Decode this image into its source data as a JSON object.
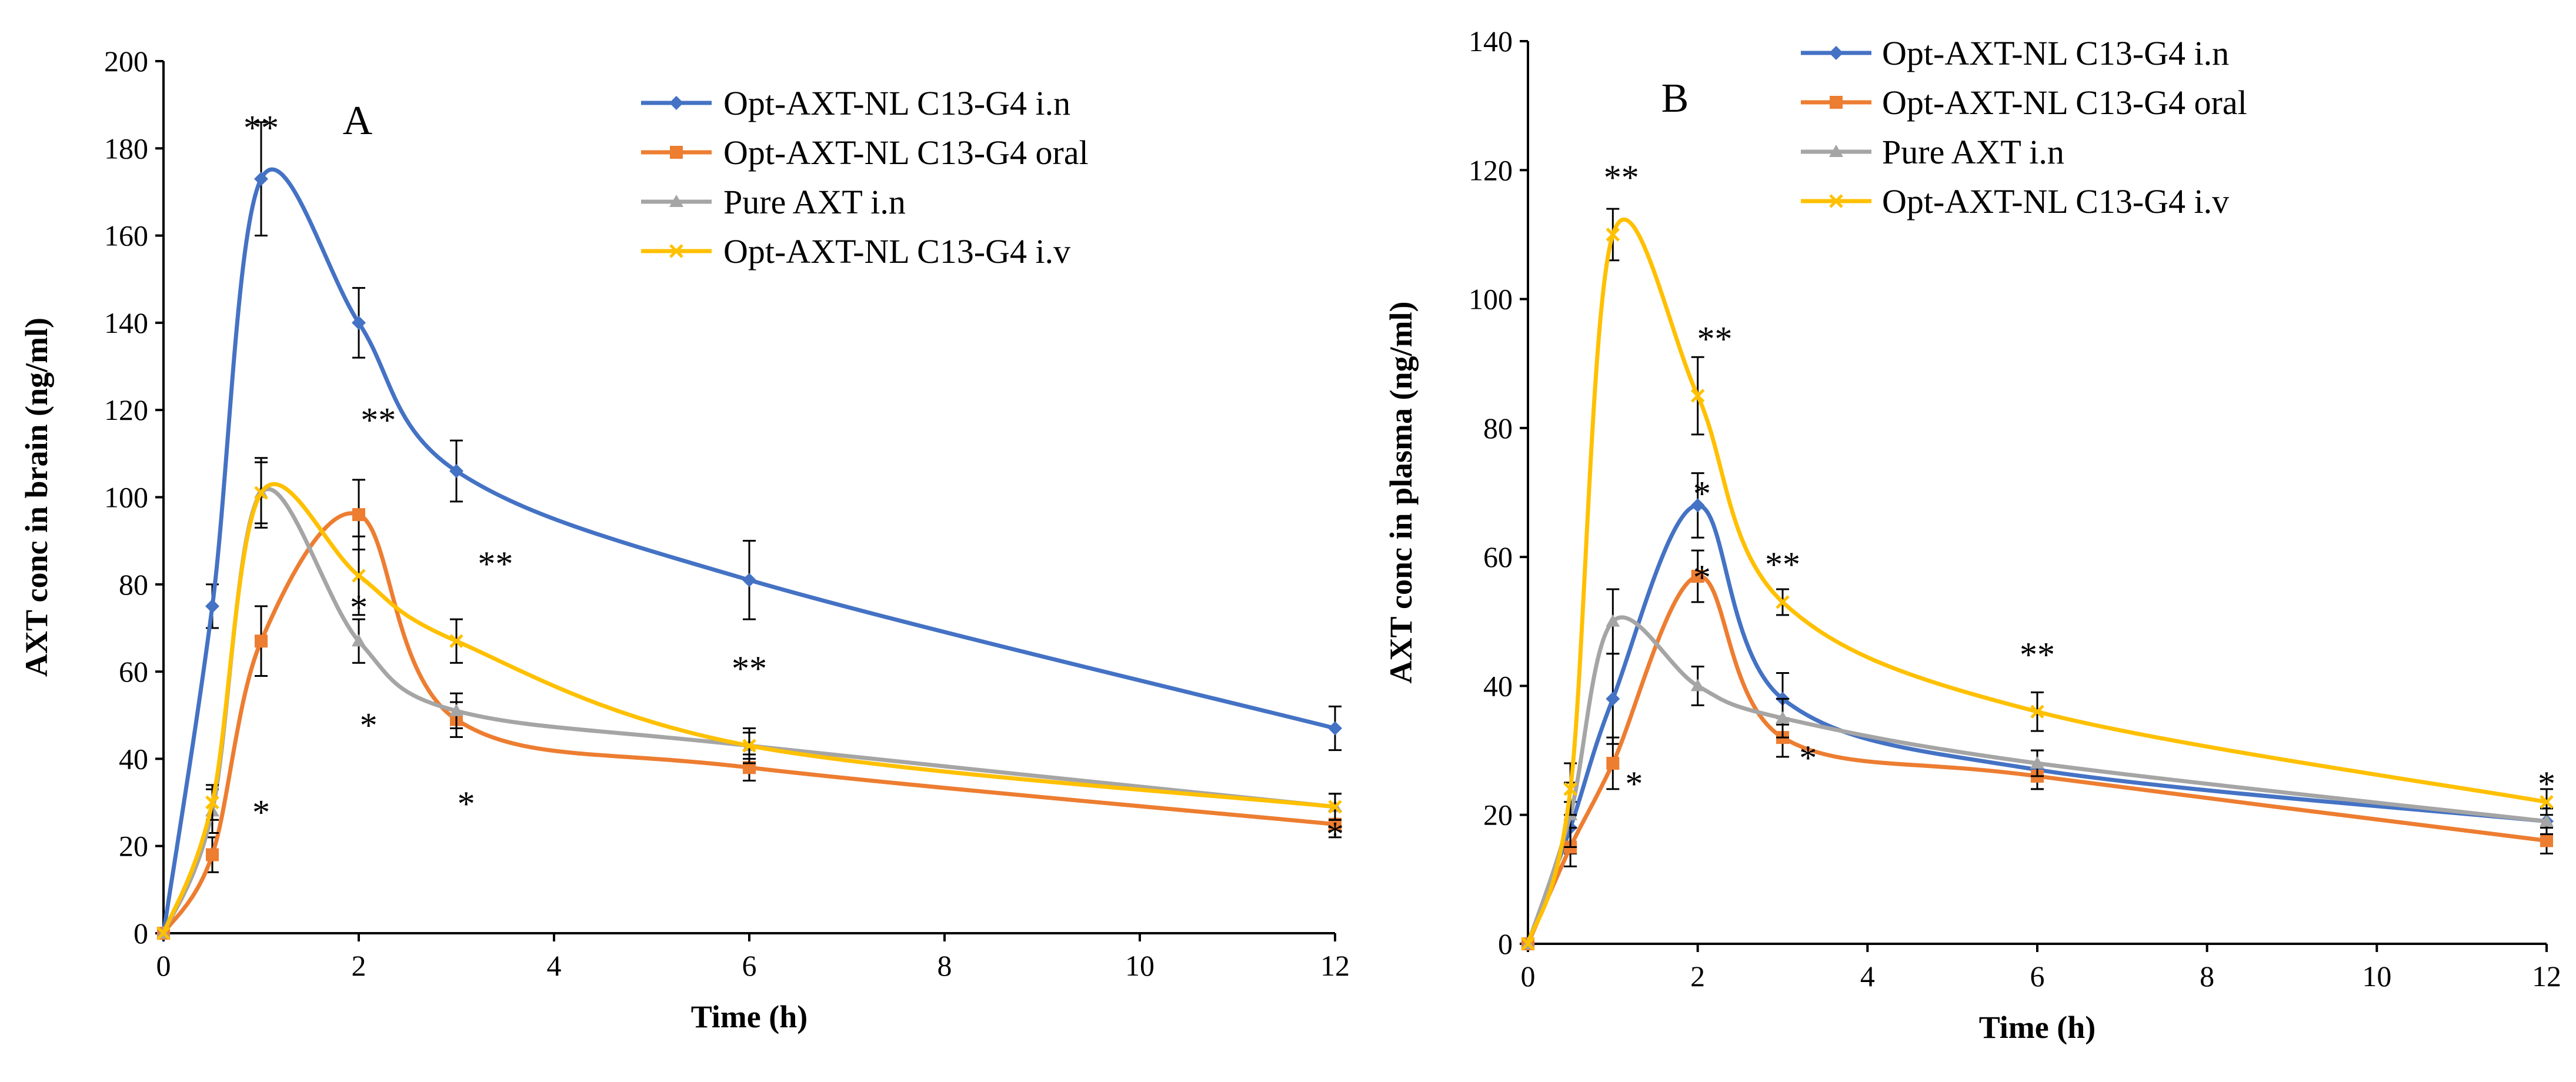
{
  "chart_data": [
    {
      "type": "line",
      "panel": "A",
      "xlabel": "Time  (h)",
      "ylabel": "AXT conc in brain  (ng/ml)",
      "xlim": [
        0,
        12
      ],
      "ylim": [
        0,
        200
      ],
      "xticks": [
        0,
        2,
        4,
        6,
        8,
        10,
        12
      ],
      "yticks": [
        0,
        20,
        40,
        60,
        80,
        100,
        120,
        140,
        160,
        180,
        200
      ],
      "legend_position": "top-right",
      "x": [
        0,
        0.5,
        1,
        2,
        3,
        6,
        12
      ],
      "series": [
        {
          "name": "Opt-AXT-NL C13-G4 i.n",
          "color": "#4472C4",
          "marker": "diamond",
          "values": [
            0,
            75,
            173,
            140,
            106,
            81,
            47
          ],
          "errors": [
            0,
            5,
            13,
            8,
            7,
            9,
            5
          ]
        },
        {
          "name": "Opt-AXT-NL C13-G4 oral",
          "color": "#ED7D31",
          "marker": "square",
          "values": [
            0,
            18,
            67,
            96,
            49,
            38,
            25
          ],
          "errors": [
            0,
            4,
            8,
            8,
            4,
            3,
            3
          ]
        },
        {
          "name": "Pure AXT i.n",
          "color": "#A5A5A5",
          "marker": "triangle",
          "values": [
            0,
            28,
            101,
            67,
            51,
            43,
            29
          ],
          "errors": [
            0,
            5,
            7,
            5,
            4,
            4,
            3
          ]
        },
        {
          "name": "Opt-AXT-NL C13-G4 i.v",
          "color": "#FFC000",
          "marker": "x",
          "values": [
            0,
            30,
            101,
            82,
            67,
            43,
            29
          ],
          "errors": [
            0,
            4,
            8,
            9,
            5,
            3,
            3
          ]
        }
      ],
      "annotations": [
        {
          "text": "**",
          "x": 1.0,
          "y": 182
        },
        {
          "text": "**",
          "x": 2.2,
          "y": 115
        },
        {
          "text": "**",
          "x": 3.4,
          "y": 82
        },
        {
          "text": "**",
          "x": 6.0,
          "y": 58
        },
        {
          "text": "*",
          "x": 2.0,
          "y": 72
        },
        {
          "text": "*",
          "x": 12.0,
          "y": 20
        },
        {
          "text": "*",
          "x": 1.0,
          "y": 25
        },
        {
          "text": "*",
          "x": 2.1,
          "y": 45
        },
        {
          "text": "*",
          "x": 3.1,
          "y": 27
        }
      ]
    },
    {
      "type": "line",
      "panel": "B",
      "xlabel": "Time (h)",
      "ylabel": "AXT conc in plasma (ng/ml)",
      "xlim": [
        0,
        12
      ],
      "ylim": [
        0,
        140
      ],
      "xticks": [
        0,
        2,
        4,
        6,
        8,
        10,
        12
      ],
      "yticks": [
        0,
        20,
        40,
        60,
        80,
        100,
        120,
        140
      ],
      "legend_position": "top-right",
      "x": [
        0,
        0.5,
        1,
        2,
        3,
        6,
        12
      ],
      "series": [
        {
          "name": "Opt-AXT-NL C13-G4 i.n",
          "color": "#4472C4",
          "marker": "diamond",
          "values": [
            0,
            18,
            38,
            68,
            38,
            27,
            19
          ],
          "errors": [
            0,
            4,
            7,
            5,
            4,
            3,
            2
          ]
        },
        {
          "name": "Opt-AXT-NL C13-G4 oral",
          "color": "#ED7D31",
          "marker": "square",
          "values": [
            0,
            15,
            28,
            57,
            32,
            26,
            16
          ],
          "errors": [
            0,
            3,
            4,
            4,
            3,
            2,
            2
          ]
        },
        {
          "name": "Pure AXT i.n",
          "color": "#A5A5A5",
          "marker": "triangle",
          "values": [
            0,
            20,
            50,
            40,
            35,
            28,
            19
          ],
          "errors": [
            0,
            5,
            5,
            3,
            3,
            2,
            2
          ]
        },
        {
          "name": "Opt-AXT-NL C13-G4 i.v",
          "color": "#FFC000",
          "marker": "x",
          "values": [
            0,
            24,
            110,
            85,
            53,
            36,
            22
          ],
          "errors": [
            0,
            4,
            4,
            6,
            2,
            3,
            2
          ]
        }
      ],
      "annotations": [
        {
          "text": "**",
          "x": 1.1,
          "y": 117
        },
        {
          "text": "**",
          "x": 2.2,
          "y": 92
        },
        {
          "text": "**",
          "x": 3.0,
          "y": 57
        },
        {
          "text": "**",
          "x": 6.0,
          "y": 43
        },
        {
          "text": "*",
          "x": 2.05,
          "y": 68
        },
        {
          "text": "*",
          "x": 2.05,
          "y": 55
        },
        {
          "text": "*",
          "x": 12.0,
          "y": 23
        },
        {
          "text": "*",
          "x": 1.25,
          "y": 23
        },
        {
          "text": "*",
          "x": 3.3,
          "y": 27
        }
      ]
    }
  ]
}
